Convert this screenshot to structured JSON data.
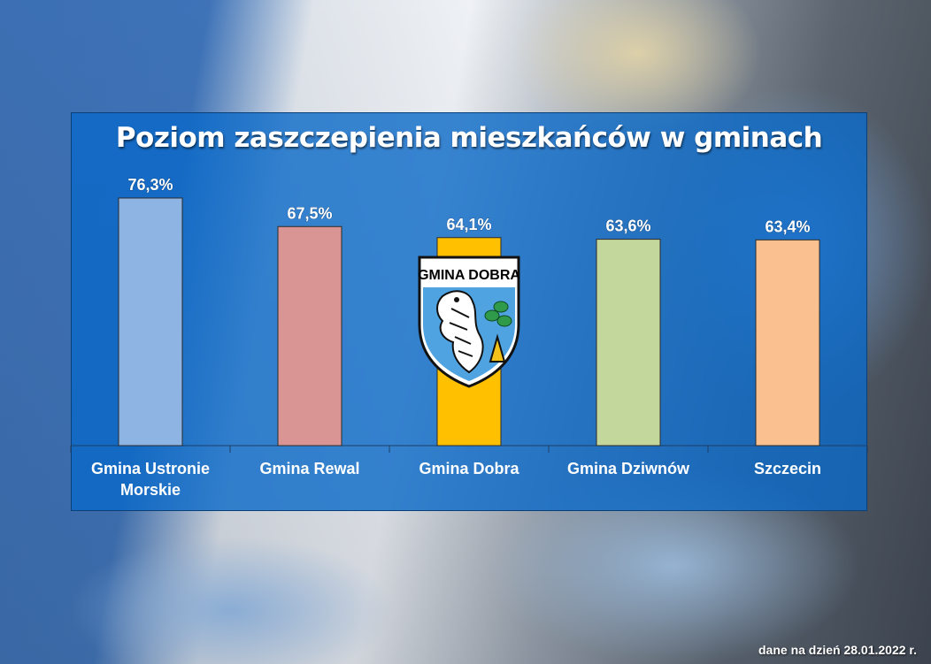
{
  "chart_data": {
    "type": "bar",
    "title": "Poziom zaszczepienia mieszkańców w gminach",
    "categories": [
      "Gmina Ustronie Morskie",
      "Gmina Rewal",
      "Gmina Dobra",
      "Gmina Dziwnów",
      "Szczecin"
    ],
    "category_lines": [
      [
        "Gmina Ustronie",
        "Morskie"
      ],
      [
        "Gmina Rewal"
      ],
      [
        "Gmina Dobra"
      ],
      [
        "Gmina Dziwnów"
      ],
      [
        "Szczecin"
      ]
    ],
    "values": [
      76.3,
      67.5,
      64.1,
      63.6,
      63.4
    ],
    "value_labels": [
      "76,3%",
      "67,5%",
      "64,1%",
      "63,6%",
      "63,4%"
    ],
    "bar_colors": [
      "#8eb4e3",
      "#d99594",
      "#ffc000",
      "#c3d69b",
      "#fac090"
    ],
    "ylim": [
      0,
      80
    ],
    "xlabel": "",
    "ylabel": "",
    "grid": false,
    "legend": "none"
  },
  "logo": {
    "text": "GMINA DOBRA",
    "icon": "gmina-dobra-coat-of-arms-icon"
  },
  "footnote": "dane na dzień 28.01.2022 r."
}
